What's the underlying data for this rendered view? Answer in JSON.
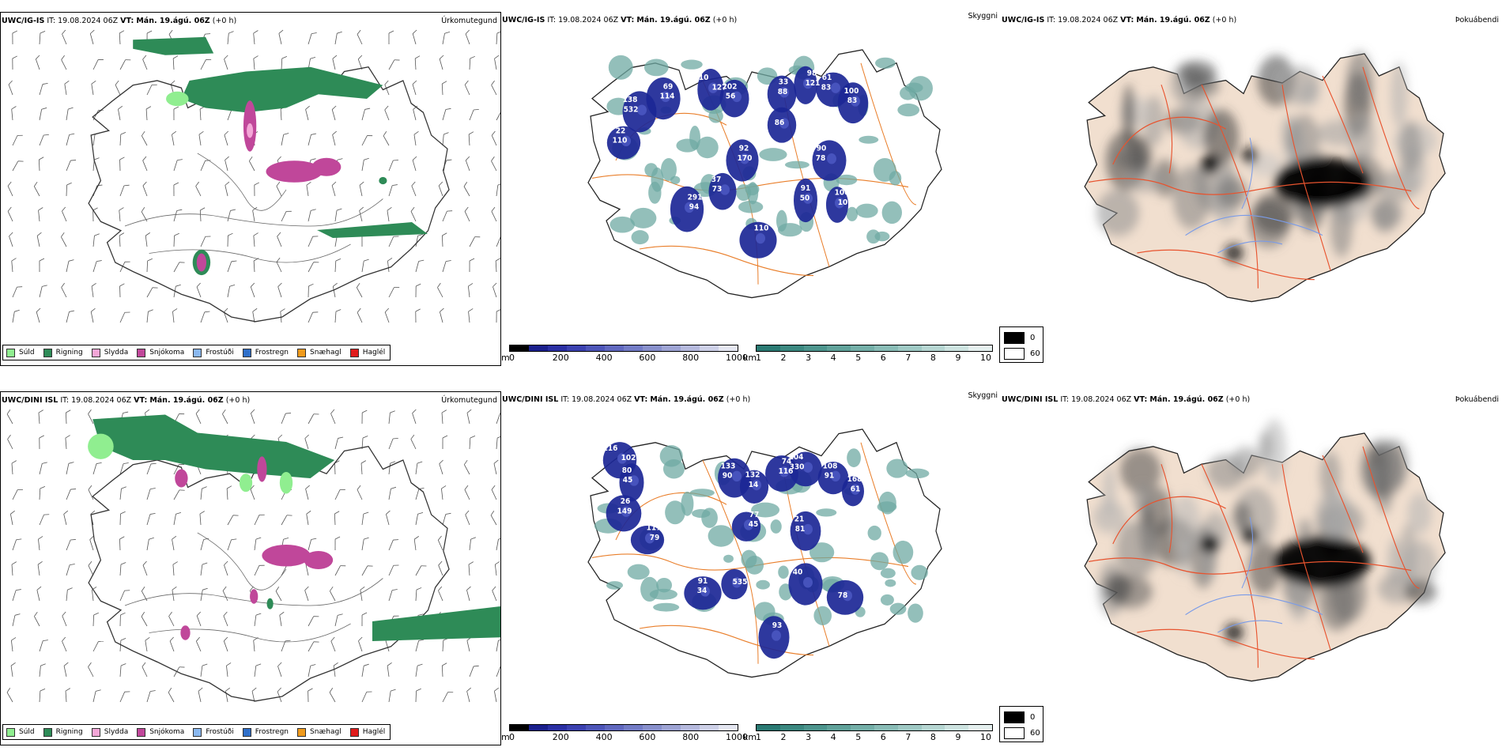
{
  "rows": [
    {
      "model": "UWC/IG-IS",
      "it_label": "IT:",
      "it_value": "19.08.2024 06Z",
      "vt_label": "VT:",
      "vt_value": "Mán. 19.ágú. 06Z",
      "lead": "(+0 h)",
      "precip_title": "Úrkomutegund",
      "vis_title": "Skyggni",
      "fog_title": "Þokuábendi",
      "cloud_labels": [
        "110",
        "56",
        "33",
        "121",
        "61",
        "83",
        "69",
        "532",
        "22",
        "170",
        "291",
        "73",
        "91",
        "10",
        "90",
        "86",
        "110",
        "127",
        "202",
        "88",
        "98",
        "83",
        "100",
        "114",
        "138",
        "110",
        "92",
        "94",
        "37",
        "50",
        "106",
        "78"
      ]
    },
    {
      "model": "UWC/DINI ISL",
      "it_label": "IT:",
      "it_value": "19.08.2024 06Z",
      "vt_label": "VT:",
      "vt_value": "Mán. 19.ágú. 06Z",
      "lead": "(+0 h)",
      "precip_title": "Úrkomutegund",
      "vis_title": "Skyggni",
      "fog_title": "Þokuábendi",
      "cloud_labels": [
        "116",
        "45",
        "26",
        "79",
        "133",
        "14",
        "74",
        "330",
        "108",
        "61",
        "77",
        "81",
        "91",
        "535",
        "40",
        "78",
        "93",
        "102",
        "80",
        "149",
        "117",
        "90",
        "132",
        "116",
        "104",
        "91",
        "168",
        "45",
        "21",
        "34"
      ]
    }
  ],
  "precip_legend": [
    {
      "label": "Súld",
      "color": "#90ee90"
    },
    {
      "label": "Rigning",
      "color": "#2e8b57"
    },
    {
      "label": "Slydda",
      "color": "#f4a6d7"
    },
    {
      "label": "Snjókoma",
      "color": "#c0479a"
    },
    {
      "label": "Frostúði",
      "color": "#8ab8f0"
    },
    {
      "label": "Frostregn",
      "color": "#2f6fc9"
    },
    {
      "label": "Snæhagl",
      "color": "#f09a1c"
    },
    {
      "label": "Haglél",
      "color": "#e01b1b"
    }
  ],
  "cloud_base_scale": {
    "unit": "m",
    "ticks": [
      "0",
      "200",
      "400",
      "600",
      "800",
      "1000"
    ],
    "colors": [
      "#000000",
      "#1a1f8c",
      "#2a2fa3",
      "#3b41b0",
      "#4d55b8",
      "#6068bf",
      "#737cc6",
      "#8890cc",
      "#9ea4d4",
      "#b5b9dd",
      "#cdd0e7",
      "#e4e6f1"
    ]
  },
  "visibility_scale": {
    "unit": "km",
    "ticks": [
      "1",
      "2",
      "3",
      "4",
      "5",
      "6",
      "7",
      "8",
      "9",
      "10"
    ],
    "colors": [
      "#2a7a73",
      "#3b8880",
      "#4d958d",
      "#60a29a",
      "#74afa8",
      "#89bcb6",
      "#9fc9c4",
      "#b6d6d2",
      "#cde3e0",
      "#e5f0ef"
    ]
  },
  "fog_scale": {
    "items": [
      {
        "label": "0",
        "color": "#000000"
      },
      {
        "label": "60",
        "color": "#ffffff"
      }
    ]
  }
}
